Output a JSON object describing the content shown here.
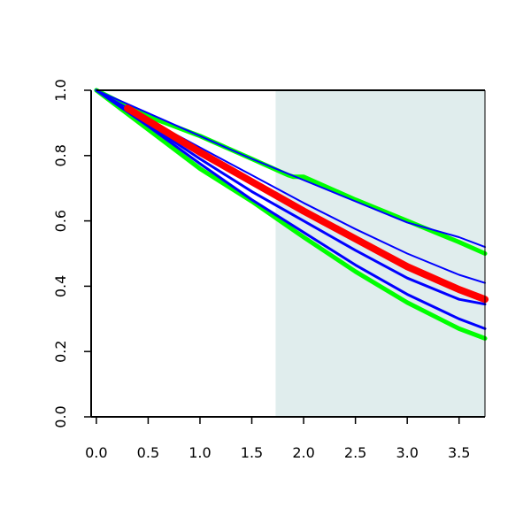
{
  "chart_data": {
    "type": "line",
    "title": "",
    "xlabel": "",
    "ylabel": "",
    "xlim": [
      -0.05,
      3.75
    ],
    "ylim": [
      0.0,
      1.0
    ],
    "x_ticks": [
      0.0,
      0.5,
      1.0,
      1.5,
      2.0,
      2.5,
      3.0,
      3.5
    ],
    "y_ticks": [
      0.0,
      0.2,
      0.4,
      0.6,
      0.8,
      1.0
    ],
    "x_tick_labels": [
      "0.0",
      "0.5",
      "1.0",
      "1.5",
      "2.0",
      "2.5",
      "3.0",
      "3.5"
    ],
    "y_tick_labels": [
      "0.0",
      "0.2",
      "0.4",
      "0.6",
      "0.8",
      "1.0"
    ],
    "grid": false,
    "legend": "none",
    "shaded_region": {
      "x_start": 1.73,
      "x_end": 3.75,
      "color": "#e0eded"
    },
    "series": [
      {
        "color": "#00ff00",
        "width": 5,
        "points": [
          [
            0.0,
            1.0
          ],
          [
            0.5,
            0.92
          ],
          [
            1.0,
            0.86
          ],
          [
            1.5,
            0.79
          ],
          [
            1.85,
            0.74
          ],
          [
            1.9,
            0.735
          ],
          [
            2.0,
            0.735
          ],
          [
            2.5,
            0.665
          ],
          [
            3.0,
            0.6
          ],
          [
            3.5,
            0.535
          ],
          [
            3.75,
            0.5
          ]
        ]
      },
      {
        "color": "#00ff00",
        "width": 5,
        "points": [
          [
            0.0,
            1.0
          ],
          [
            0.5,
            0.88
          ],
          [
            1.0,
            0.76
          ],
          [
            1.5,
            0.66
          ],
          [
            2.0,
            0.55
          ],
          [
            2.5,
            0.445
          ],
          [
            3.0,
            0.35
          ],
          [
            3.5,
            0.27
          ],
          [
            3.75,
            0.24
          ]
        ]
      },
      {
        "color": "#0000ff",
        "width": 2,
        "points": [
          [
            0.0,
            1.0
          ],
          [
            0.5,
            0.93
          ],
          [
            1.0,
            0.86
          ],
          [
            1.5,
            0.79
          ],
          [
            2.0,
            0.725
          ],
          [
            2.5,
            0.66
          ],
          [
            3.0,
            0.595
          ],
          [
            3.5,
            0.55
          ],
          [
            3.75,
            0.52
          ]
        ]
      },
      {
        "color": "#0000ff",
        "width": 2,
        "points": [
          [
            0.0,
            1.0
          ],
          [
            0.5,
            0.91
          ],
          [
            1.0,
            0.825
          ],
          [
            1.5,
            0.74
          ],
          [
            2.0,
            0.655
          ],
          [
            2.5,
            0.575
          ],
          [
            3.0,
            0.5
          ],
          [
            3.5,
            0.435
          ],
          [
            3.75,
            0.41
          ]
        ]
      },
      {
        "color": "#0000ff",
        "width": 3,
        "points": [
          [
            0.0,
            1.0
          ],
          [
            0.5,
            0.895
          ],
          [
            1.0,
            0.79
          ],
          [
            1.5,
            0.69
          ],
          [
            2.0,
            0.6
          ],
          [
            2.5,
            0.51
          ],
          [
            3.0,
            0.425
          ],
          [
            3.5,
            0.36
          ],
          [
            3.75,
            0.345
          ]
        ]
      },
      {
        "color": "#0000ff",
        "width": 3,
        "points": [
          [
            0.0,
            1.0
          ],
          [
            0.5,
            0.89
          ],
          [
            1.0,
            0.775
          ],
          [
            1.5,
            0.665
          ],
          [
            2.0,
            0.565
          ],
          [
            2.5,
            0.465
          ],
          [
            3.0,
            0.375
          ],
          [
            3.5,
            0.3
          ],
          [
            3.75,
            0.27
          ]
        ]
      },
      {
        "color": "#ff0000",
        "width": 8,
        "points": [
          [
            0.3,
            0.945
          ],
          [
            1.0,
            0.81
          ],
          [
            1.5,
            0.72
          ],
          [
            2.0,
            0.63
          ],
          [
            2.5,
            0.545
          ],
          [
            3.0,
            0.46
          ],
          [
            3.5,
            0.39
          ],
          [
            3.75,
            0.36
          ]
        ]
      }
    ]
  }
}
